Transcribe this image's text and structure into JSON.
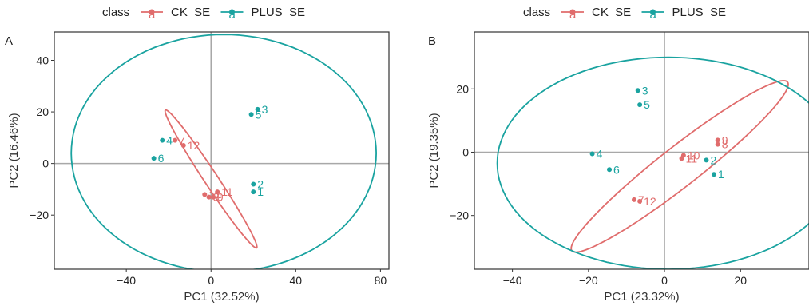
{
  "colors": {
    "ck": "#e06c6c",
    "plus": "#1aa3a0",
    "zero_line": "#a8a8a8",
    "frame": "#333333"
  },
  "chart_data": [
    {
      "type": "scatter",
      "panel_label": "A",
      "legend": {
        "title": "class",
        "entries": [
          "CK_SE",
          "PLUS_SE"
        ],
        "glyph": "a",
        "placement": "top"
      },
      "xlabel": "PC1 (32.52%)",
      "ylabel": "PC2 (16.46%)",
      "xlim": [
        -74,
        84
      ],
      "ylim": [
        -41,
        51
      ],
      "xticks": [
        -40,
        0,
        40,
        80
      ],
      "yticks": [
        -20,
        0,
        20,
        40
      ],
      "tick_labels_x": [
        "−40",
        "0",
        "40",
        "80"
      ],
      "tick_labels_y": [
        "−20",
        "0",
        "20",
        "40"
      ],
      "series": [
        {
          "name": "CK_SE",
          "color_key": "ck",
          "points": [
            {
              "label": "7",
              "x": -17,
              "y": 9
            },
            {
              "label": "12",
              "x": -13,
              "y": 7
            },
            {
              "label": "11",
              "x": 3,
              "y": -11
            },
            {
              "label": "10",
              "x": -3,
              "y": -12
            },
            {
              "label": "8",
              "x": -1,
              "y": -13
            },
            {
              "label": "9",
              "x": 1,
              "y": -13
            }
          ],
          "ellipse": {
            "center": [
              0,
              -6
            ],
            "angle_deg": -56.5,
            "semi_axes": [
              39,
              3.2
            ]
          }
        },
        {
          "name": "PLUS_SE",
          "color_key": "plus",
          "points": [
            {
              "label": "3",
              "x": 22,
              "y": 21
            },
            {
              "label": "5",
              "x": 19,
              "y": 19
            },
            {
              "label": "4",
              "x": -23,
              "y": 9
            },
            {
              "label": "6",
              "x": -27,
              "y": 2
            },
            {
              "label": "2",
              "x": 20,
              "y": -8
            },
            {
              "label": "1",
              "x": 20,
              "y": -11
            }
          ],
          "ellipse": {
            "center": [
              6,
              4
            ],
            "angle_deg": 0,
            "semi_axes": [
              72,
              46
            ]
          }
        }
      ]
    },
    {
      "type": "scatter",
      "panel_label": "B",
      "legend": {
        "title": "class",
        "entries": [
          "CK_SE",
          "PLUS_SE"
        ],
        "glyph": "a",
        "placement": "top"
      },
      "xlabel": "PC1 (23.32%)",
      "ylabel": "PC2 (19.35%)",
      "xlim": [
        -50,
        38
      ],
      "ylim": [
        -37,
        38
      ],
      "xticks": [
        -40,
        -20,
        0,
        20
      ],
      "yticks": [
        -20,
        0,
        20
      ],
      "tick_labels_x": [
        "−40",
        "−20",
        "0",
        "20"
      ],
      "tick_labels_y": [
        "−20",
        "0",
        "20"
      ],
      "series": [
        {
          "name": "CK_SE",
          "color_key": "ck",
          "points": [
            {
              "label": "9",
              "x": 14,
              "y": 3.8
            },
            {
              "label": "8",
              "x": 14,
              "y": 2.5
            },
            {
              "label": "10",
              "x": 5,
              "y": -1
            },
            {
              "label": "11",
              "x": 4.5,
              "y": -2
            },
            {
              "label": "7",
              "x": -8,
              "y": -15
            },
            {
              "label": "12",
              "x": -6.5,
              "y": -15.5
            }
          ],
          "ellipse": {
            "center": [
              4,
              -4.5
            ],
            "angle_deg": 38,
            "semi_axes": [
              36,
              5.2
            ]
          }
        },
        {
          "name": "PLUS_SE",
          "color_key": "plus",
          "points": [
            {
              "label": "3",
              "x": -7,
              "y": 19.5
            },
            {
              "label": "5",
              "x": -6.5,
              "y": 15
            },
            {
              "label": "4",
              "x": -19,
              "y": -0.5
            },
            {
              "label": "6",
              "x": -14.5,
              "y": -5.5
            },
            {
              "label": "2",
              "x": 11,
              "y": -2.5
            },
            {
              "label": "1",
              "x": 13,
              "y": -7
            }
          ],
          "ellipse": {
            "center": [
              1,
              -3.5
            ],
            "angle_deg": 0,
            "semi_axes": [
              45,
              33.5
            ]
          }
        }
      ]
    }
  ]
}
